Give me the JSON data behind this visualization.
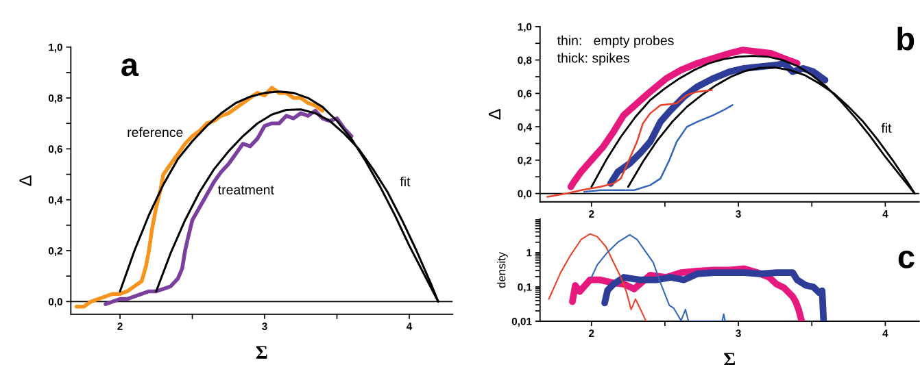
{
  "chart_data": [
    {
      "type": "line",
      "title": "a",
      "xlabel": "Σ",
      "ylabel": "Δ",
      "xlim": [
        1.66,
        4.3
      ],
      "ylim": [
        -0.05,
        1.0
      ],
      "xticks": [
        2,
        3,
        4
      ],
      "yticks": [
        {
          "value": 0,
          "label": "0,0"
        },
        {
          "value": 0.2,
          "label": "0,2"
        },
        {
          "value": 0.4,
          "label": "0,4"
        },
        {
          "value": 0.6,
          "label": "0,6"
        },
        {
          "value": 0.8,
          "label": "0,8"
        },
        {
          "value": 1.0,
          "label": "1,0"
        }
      ],
      "ref_lines": [
        {
          "axis": "y",
          "value": 0,
          "color": "#000000"
        }
      ],
      "annotations": [
        "reference",
        "treatment",
        "fit"
      ],
      "legend": false,
      "grid": false,
      "series": [
        {
          "color": "#f7941d",
          "x": [
            1.7,
            1.75,
            1.8,
            1.85,
            1.9,
            1.95,
            2.0,
            2.05,
            2.1,
            2.15,
            2.18,
            2.2,
            2.22,
            2.25,
            2.28,
            2.3,
            2.35,
            2.4,
            2.45,
            2.5,
            2.55,
            2.6,
            2.65,
            2.7,
            2.75,
            2.8,
            2.85,
            2.9,
            2.95,
            3.0,
            3.05,
            3.1,
            3.15,
            3.2,
            3.25,
            3.3,
            3.35,
            3.4
          ],
          "values": [
            -0.02,
            -0.02,
            0.0,
            0.01,
            0.02,
            0.03,
            0.03,
            0.04,
            0.06,
            0.08,
            0.14,
            0.2,
            0.28,
            0.37,
            0.44,
            0.5,
            0.54,
            0.58,
            0.62,
            0.65,
            0.67,
            0.7,
            0.71,
            0.73,
            0.74,
            0.76,
            0.78,
            0.8,
            0.82,
            0.81,
            0.84,
            0.82,
            0.82,
            0.8,
            0.8,
            0.78,
            0.77,
            0.75
          ]
        },
        {
          "color": "#7b3f9e",
          "x": [
            1.9,
            1.95,
            2.0,
            2.05,
            2.1,
            2.15,
            2.2,
            2.25,
            2.3,
            2.35,
            2.4,
            2.43,
            2.45,
            2.47,
            2.5,
            2.55,
            2.6,
            2.65,
            2.7,
            2.75,
            2.8,
            2.85,
            2.9,
            2.95,
            3.0,
            3.05,
            3.1,
            3.15,
            3.2,
            3.25,
            3.3,
            3.35,
            3.4,
            3.45,
            3.5,
            3.55,
            3.6
          ],
          "values": [
            -0.01,
            0.0,
            0.01,
            0.01,
            0.02,
            0.03,
            0.04,
            0.04,
            0.05,
            0.06,
            0.09,
            0.13,
            0.2,
            0.25,
            0.32,
            0.37,
            0.42,
            0.47,
            0.51,
            0.54,
            0.58,
            0.62,
            0.61,
            0.64,
            0.69,
            0.7,
            0.7,
            0.73,
            0.72,
            0.74,
            0.73,
            0.75,
            0.72,
            0.71,
            0.72,
            0.68,
            0.65
          ]
        },
        {
          "color": "#000000",
          "x": [
            2.0,
            2.1,
            2.2,
            2.3,
            2.4,
            2.5,
            2.6,
            2.7,
            2.8,
            2.9,
            3.0,
            3.1,
            3.2,
            3.3,
            3.4,
            3.5,
            3.6,
            3.7,
            3.8,
            3.9,
            4.0,
            4.1,
            4.2
          ],
          "values": [
            0.04,
            0.2,
            0.34,
            0.46,
            0.56,
            0.63,
            0.69,
            0.74,
            0.78,
            0.805,
            0.82,
            0.825,
            0.82,
            0.8,
            0.765,
            0.71,
            0.64,
            0.55,
            0.45,
            0.34,
            0.22,
            0.11,
            0.0
          ]
        },
        {
          "color": "#000000",
          "x": [
            2.25,
            2.35,
            2.45,
            2.55,
            2.65,
            2.75,
            2.85,
            2.95,
            3.05,
            3.15,
            3.25,
            3.35,
            3.45,
            3.55,
            3.65,
            3.75,
            3.85,
            3.95,
            4.05,
            4.15,
            4.2
          ],
          "values": [
            0.04,
            0.19,
            0.32,
            0.43,
            0.52,
            0.59,
            0.65,
            0.7,
            0.735,
            0.753,
            0.755,
            0.74,
            0.71,
            0.66,
            0.6,
            0.52,
            0.43,
            0.32,
            0.2,
            0.07,
            0.0
          ]
        }
      ]
    },
    {
      "type": "line",
      "title": "b",
      "ylabel": "Δ",
      "xlim": [
        1.65,
        4.23
      ],
      "ylim": [
        -0.05,
        1.0
      ],
      "xticks": [
        2,
        3,
        4
      ],
      "yticks": [
        {
          "value": 0,
          "label": "0,0"
        },
        {
          "value": 0.2,
          "label": "0,2"
        },
        {
          "value": 0.4,
          "label": "0,4"
        },
        {
          "value": 0.6,
          "label": "0,6"
        },
        {
          "value": 0.8,
          "label": "0,8"
        },
        {
          "value": 1.0,
          "label": "1,0"
        }
      ],
      "ref_lines": [
        {
          "axis": "y",
          "value": 0,
          "color": "#000000"
        }
      ],
      "annotations": [
        "thin:   empty probes",
        "thick: spikes",
        "fit"
      ],
      "legend": false,
      "grid": false,
      "series": [
        {
          "color": "#000000",
          "x": [
            2.0,
            2.1,
            2.2,
            2.3,
            2.4,
            2.5,
            2.6,
            2.7,
            2.8,
            2.9,
            3.0,
            3.1,
            3.2,
            3.3,
            3.4,
            3.5,
            3.6,
            3.7,
            3.8,
            3.9,
            4.0,
            4.1,
            4.2
          ],
          "values": [
            0.04,
            0.2,
            0.34,
            0.46,
            0.56,
            0.63,
            0.69,
            0.74,
            0.78,
            0.805,
            0.82,
            0.825,
            0.82,
            0.8,
            0.765,
            0.71,
            0.64,
            0.55,
            0.45,
            0.34,
            0.22,
            0.11,
            0.0
          ]
        },
        {
          "color": "#000000",
          "x": [
            2.25,
            2.35,
            2.45,
            2.55,
            2.65,
            2.75,
            2.85,
            2.95,
            3.05,
            3.15,
            3.25,
            3.35,
            3.45,
            3.55,
            3.65,
            3.75,
            3.85,
            3.95,
            4.05,
            4.15,
            4.2
          ],
          "values": [
            0.04,
            0.19,
            0.32,
            0.43,
            0.52,
            0.59,
            0.65,
            0.7,
            0.735,
            0.753,
            0.755,
            0.74,
            0.71,
            0.66,
            0.6,
            0.52,
            0.43,
            0.32,
            0.2,
            0.07,
            0.0
          ]
        },
        {
          "color": "#e6197e",
          "x": [
            1.86,
            1.88,
            1.93,
            2.0,
            2.08,
            2.15,
            2.22,
            2.31,
            2.4,
            2.51,
            2.61,
            2.72,
            2.83,
            2.94,
            3.03,
            3.13,
            3.22,
            3.31,
            3.4
          ],
          "values": [
            0.04,
            0.07,
            0.13,
            0.2,
            0.28,
            0.37,
            0.47,
            0.54,
            0.61,
            0.69,
            0.74,
            0.78,
            0.81,
            0.84,
            0.86,
            0.85,
            0.84,
            0.81,
            0.78
          ]
        },
        {
          "color": "#e8412c",
          "x": [
            1.7,
            1.83,
            1.93,
            2.06,
            2.15,
            2.2,
            2.26,
            2.31,
            2.35,
            2.4,
            2.47,
            2.58,
            2.65,
            2.72,
            2.82
          ],
          "values": [
            -0.02,
            0.0,
            0.02,
            0.04,
            0.06,
            0.09,
            0.21,
            0.31,
            0.42,
            0.48,
            0.53,
            0.54,
            0.59,
            0.61,
            0.62
          ]
        },
        {
          "color": "#2e3d98",
          "x": [
            2.13,
            2.18,
            2.26,
            2.33,
            2.4,
            2.47,
            2.54,
            2.63,
            2.72,
            2.83,
            2.94,
            3.04,
            3.15,
            3.26,
            3.31,
            3.37,
            3.44,
            3.51,
            3.59
          ],
          "values": [
            0.06,
            0.13,
            0.18,
            0.24,
            0.31,
            0.43,
            0.5,
            0.58,
            0.64,
            0.69,
            0.73,
            0.75,
            0.76,
            0.77,
            0.78,
            0.73,
            0.75,
            0.73,
            0.68
          ]
        },
        {
          "color": "#3366bb",
          "x": [
            1.95,
            2.06,
            2.18,
            2.29,
            2.4,
            2.47,
            2.53,
            2.58,
            2.65,
            2.72,
            2.83,
            2.9,
            2.96
          ],
          "values": [
            0.01,
            0.02,
            0.02,
            0.02,
            0.05,
            0.09,
            0.2,
            0.31,
            0.4,
            0.43,
            0.47,
            0.5,
            0.53
          ]
        }
      ]
    },
    {
      "type": "line",
      "title": "c",
      "xlabel": "Σ",
      "ylabel": "density",
      "log": "y",
      "xlim": [
        1.65,
        4.23
      ],
      "ylim": [
        0.01,
        9.5
      ],
      "xticks": [
        2,
        3,
        4
      ],
      "yticks": [
        {
          "value": 0.01,
          "label": "0,01"
        },
        {
          "value": 0.1,
          "label": "0,1"
        },
        1
      ],
      "legend": false,
      "grid": false,
      "series": [
        {
          "color": "#e8412c",
          "x": [
            1.71,
            1.79,
            1.86,
            1.93,
            1.99,
            2.04,
            2.1,
            2.15,
            2.2,
            2.24,
            2.27,
            2.3,
            2.33,
            2.37,
            2.38
          ],
          "values": [
            0.044,
            0.26,
            0.87,
            2.4,
            3.5,
            2.9,
            1.45,
            0.52,
            0.19,
            0.067,
            0.022,
            0.044,
            0.024,
            0.0103,
            0.01
          ]
        },
        {
          "color": "#3366bb",
          "x": [
            2.0,
            2.04,
            2.11,
            2.18,
            2.26,
            2.31,
            2.36,
            2.42,
            2.47,
            2.53,
            2.56,
            2.61,
            2.64,
            2.66,
            2.7,
            2.89,
            2.9,
            2.91
          ],
          "values": [
            0.19,
            0.44,
            1.03,
            2.0,
            3.3,
            2.4,
            1.2,
            0.52,
            0.13,
            0.029,
            0.024,
            0.0104,
            0.022,
            0.01,
            0.01,
            0.01,
            0.016,
            0.01
          ]
        },
        {
          "color": "#e6197e",
          "x": [
            1.87,
            1.89,
            1.92,
            1.99,
            2.06,
            2.15,
            2.22,
            2.29,
            2.4,
            2.51,
            2.61,
            2.72,
            2.83,
            2.94,
            3.04,
            3.13,
            3.21,
            3.26,
            3.31,
            3.37,
            3.39,
            3.41,
            3.43
          ],
          "values": [
            0.037,
            0.11,
            0.073,
            0.16,
            0.16,
            0.13,
            0.12,
            0.087,
            0.22,
            0.19,
            0.26,
            0.29,
            0.31,
            0.31,
            0.34,
            0.26,
            0.19,
            0.12,
            0.095,
            0.052,
            0.037,
            0.022,
            0.0103
          ]
        },
        {
          "color": "#2e3d98",
          "x": [
            2.09,
            2.11,
            2.15,
            2.22,
            2.33,
            2.44,
            2.54,
            2.63,
            2.72,
            2.83,
            2.94,
            3.04,
            3.15,
            3.26,
            3.37,
            3.4,
            3.46,
            3.51,
            3.55,
            3.57,
            3.58
          ],
          "values": [
            0.034,
            0.08,
            0.12,
            0.19,
            0.16,
            0.16,
            0.19,
            0.16,
            0.24,
            0.26,
            0.26,
            0.26,
            0.24,
            0.26,
            0.26,
            0.16,
            0.11,
            0.1,
            0.068,
            0.077,
            0.0104
          ]
        }
      ]
    }
  ]
}
